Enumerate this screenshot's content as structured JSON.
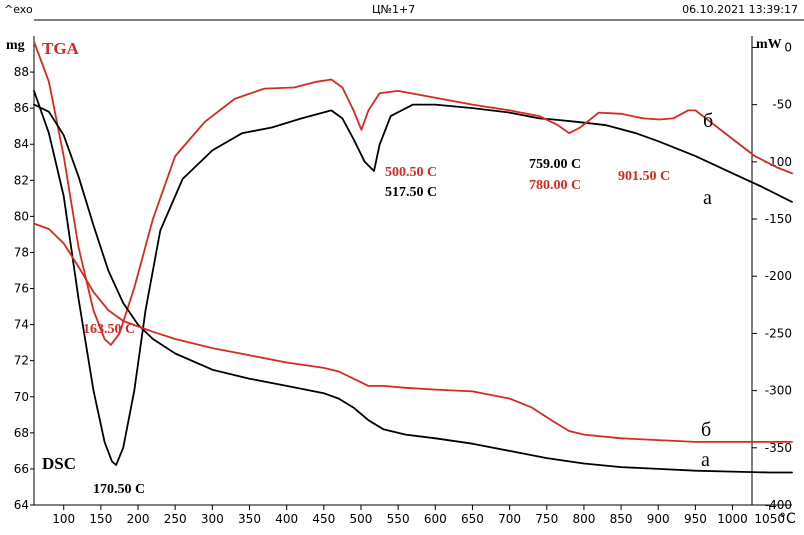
{
  "header": {
    "left": "^exo",
    "center": "Ц№1+7",
    "right": "06.10.2021 13:39:17"
  },
  "chart_data": {
    "type": "line",
    "title": "",
    "x_unit_label": "°C",
    "left_axis_label": "mg",
    "right_axis_label": "mW",
    "tga_label": "TGA",
    "dsc_label": "DSC",
    "xlim": [
      60,
      1080
    ],
    "left_ylim": [
      64,
      90
    ],
    "right_ylim": [
      -400,
      10
    ],
    "x_ticks": [
      100,
      150,
      200,
      250,
      300,
      350,
      400,
      450,
      500,
      550,
      600,
      650,
      700,
      750,
      800,
      850,
      900,
      950,
      1000,
      1050
    ],
    "left_ticks": [
      64,
      66,
      68,
      70,
      72,
      74,
      76,
      78,
      80,
      82,
      84,
      86,
      88
    ],
    "right_ticks": [
      0,
      -50,
      -100,
      -150,
      -200,
      -250,
      -300,
      -350,
      -400
    ],
    "colors": {
      "a": "#000000",
      "b": "#d42a22"
    },
    "series": [
      {
        "name": "DSC а",
        "kind": "dsc",
        "color_key": "a",
        "axis": "right",
        "x": [
          60,
          80,
          100,
          120,
          140,
          155,
          165,
          170.5,
          180,
          195,
          210,
          230,
          260,
          300,
          340,
          380,
          420,
          460,
          475,
          490,
          505,
          517.5,
          525,
          540,
          570,
          600,
          650,
          700,
          740,
          759,
          790,
          830,
          870,
          900,
          950,
          1000,
          1040,
          1080
        ],
        "y": [
          -38,
          -75,
          -130,
          -220,
          -300,
          -345,
          -362,
          -365,
          -350,
          -300,
          -230,
          -160,
          -115,
          -90,
          -75,
          -70,
          -62,
          -55,
          -62,
          -80,
          -100,
          -108,
          -85,
          -60,
          -50,
          -50,
          -53,
          -57,
          -62,
          -63,
          -65,
          -68,
          -75,
          -82,
          -95,
          -110,
          -122,
          -135
        ]
      },
      {
        "name": "DSC б",
        "kind": "dsc",
        "color_key": "b",
        "axis": "right",
        "x": [
          60,
          80,
          100,
          120,
          140,
          155,
          163.5,
          175,
          195,
          220,
          250,
          290,
          330,
          370,
          410,
          440,
          460,
          475,
          490,
          500.5,
          510,
          525,
          550,
          600,
          650,
          700,
          740,
          765,
          780,
          795,
          820,
          850,
          880,
          901.5,
          920,
          940,
          950,
          970,
          1000,
          1030,
          1060,
          1080
        ],
        "y": [
          5,
          -30,
          -95,
          -175,
          -230,
          -255,
          -260,
          -250,
          -210,
          -150,
          -95,
          -65,
          -45,
          -36,
          -35,
          -30,
          -28,
          -35,
          -55,
          -72,
          -55,
          -40,
          -38,
          -44,
          -50,
          -55,
          -60,
          -68,
          -75,
          -70,
          -57,
          -58,
          -62,
          -63,
          -62,
          -55,
          -55,
          -65,
          -80,
          -95,
          -105,
          -110
        ]
      },
      {
        "name": "TGA а",
        "kind": "tga",
        "color_key": "a",
        "axis": "left",
        "x": [
          60,
          80,
          100,
          120,
          140,
          160,
          180,
          200,
          220,
          250,
          300,
          350,
          400,
          450,
          470,
          490,
          510,
          530,
          560,
          600,
          650,
          700,
          750,
          800,
          850,
          900,
          950,
          1000,
          1050,
          1080
        ],
        "y": [
          86.2,
          85.8,
          84.5,
          82.2,
          79.5,
          77.0,
          75.2,
          74.0,
          73.2,
          72.4,
          71.5,
          71.0,
          70.6,
          70.2,
          69.9,
          69.4,
          68.7,
          68.2,
          67.9,
          67.7,
          67.4,
          67.0,
          66.6,
          66.3,
          66.1,
          66.0,
          65.9,
          65.85,
          65.8,
          65.8
        ]
      },
      {
        "name": "TGA б",
        "kind": "tga",
        "color_key": "b",
        "axis": "left",
        "x": [
          60,
          80,
          100,
          120,
          140,
          160,
          180,
          200,
          220,
          250,
          300,
          350,
          400,
          450,
          470,
          490,
          510,
          530,
          560,
          600,
          650,
          700,
          730,
          760,
          780,
          800,
          850,
          900,
          950,
          1000,
          1050,
          1080
        ],
        "y": [
          79.6,
          79.3,
          78.5,
          77.2,
          75.8,
          74.8,
          74.2,
          73.9,
          73.6,
          73.2,
          72.7,
          72.3,
          71.9,
          71.6,
          71.4,
          71.0,
          70.6,
          70.6,
          70.5,
          70.4,
          70.3,
          69.9,
          69.4,
          68.6,
          68.1,
          67.9,
          67.7,
          67.6,
          67.5,
          67.5,
          67.5,
          67.5
        ]
      }
    ],
    "annotations": [
      {
        "text": "163.50 C",
        "color_key": "b"
      },
      {
        "text": "170.50 C",
        "color_key": "a"
      },
      {
        "text": "500.50 C",
        "color_key": "b"
      },
      {
        "text": "517.50 C",
        "color_key": "a"
      },
      {
        "text": "759.00 C",
        "color_key": "a"
      },
      {
        "text": "780.00 C",
        "color_key": "b"
      },
      {
        "text": "901.50 C",
        "color_key": "b"
      }
    ],
    "curve_labels": [
      {
        "text": "б",
        "color_key": "a"
      },
      {
        "text": "а",
        "color_key": "a"
      },
      {
        "text": "б",
        "color_key": "a"
      },
      {
        "text": "а",
        "color_key": "a"
      }
    ]
  }
}
